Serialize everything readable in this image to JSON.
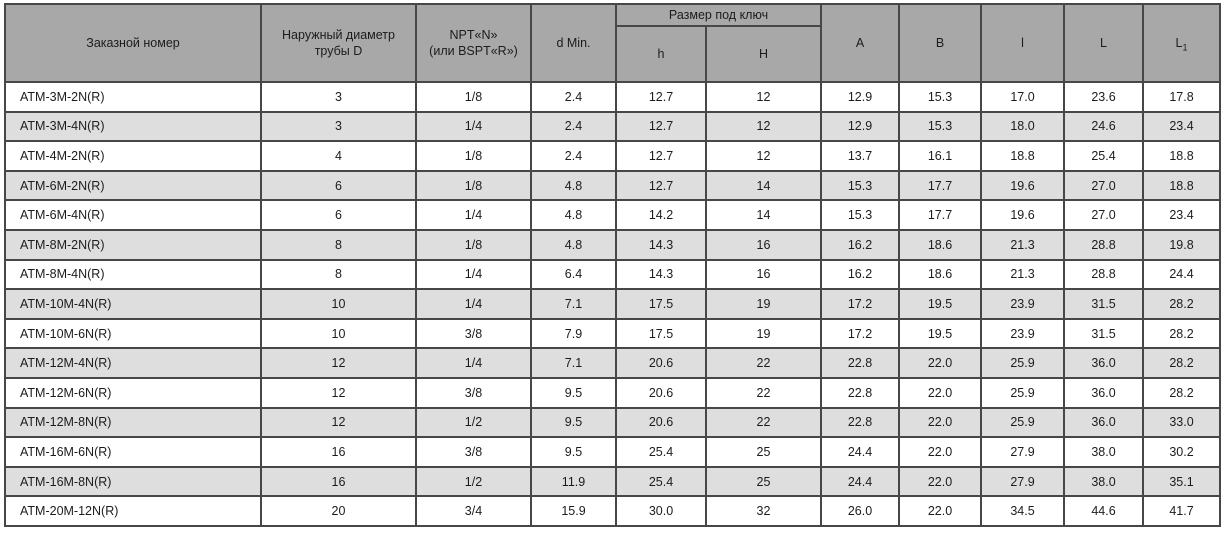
{
  "colors": {
    "page_bg": "#ffffff",
    "header_bg": "#a8a8a8",
    "row_bg": "#ffffff",
    "stripe_bg": "#dedede",
    "border": "#474747",
    "text": "#1c1c1c"
  },
  "table": {
    "header": {
      "order_number": "Заказной номер",
      "tube_diameter": "Наружный диаметр\nтрубы D",
      "npt": "NPT«N»\n(или BSPT«R»)",
      "d_min": "d Min.",
      "wrench_group": "Размер под ключ",
      "wrench_h": "h",
      "wrench_H": "H",
      "a": "A",
      "b": "B",
      "l_small": "l",
      "l_big": "L",
      "l1_base": "L",
      "l1_sub": "1"
    },
    "column_keys": [
      "order-number",
      "tube-diameter-d",
      "npt-size",
      "d-min",
      "wrench-h",
      "wrench-H",
      "A",
      "B",
      "l",
      "L",
      "L1"
    ],
    "rows": [
      [
        "ATM-3M-2N(R)",
        "3",
        "1/8",
        "2.4",
        "12.7",
        "12",
        "12.9",
        "15.3",
        "17.0",
        "23.6",
        "17.8"
      ],
      [
        "ATM-3M-4N(R)",
        "3",
        "1/4",
        "2.4",
        "12.7",
        "12",
        "12.9",
        "15.3",
        "18.0",
        "24.6",
        "23.4"
      ],
      [
        "ATM-4M-2N(R)",
        "4",
        "1/8",
        "2.4",
        "12.7",
        "12",
        "13.7",
        "16.1",
        "18.8",
        "25.4",
        "18.8"
      ],
      [
        "ATM-6M-2N(R)",
        "6",
        "1/8",
        "4.8",
        "12.7",
        "14",
        "15.3",
        "17.7",
        "19.6",
        "27.0",
        "18.8"
      ],
      [
        "ATM-6M-4N(R)",
        "6",
        "1/4",
        "4.8",
        "14.2",
        "14",
        "15.3",
        "17.7",
        "19.6",
        "27.0",
        "23.4"
      ],
      [
        "ATM-8M-2N(R)",
        "8",
        "1/8",
        "4.8",
        "14.3",
        "16",
        "16.2",
        "18.6",
        "21.3",
        "28.8",
        "19.8"
      ],
      [
        "ATM-8M-4N(R)",
        "8",
        "1/4",
        "6.4",
        "14.3",
        "16",
        "16.2",
        "18.6",
        "21.3",
        "28.8",
        "24.4"
      ],
      [
        "ATM-10M-4N(R)",
        "10",
        "1/4",
        "7.1",
        "17.5",
        "19",
        "17.2",
        "19.5",
        "23.9",
        "31.5",
        "28.2"
      ],
      [
        "ATM-10M-6N(R)",
        "10",
        "3/8",
        "7.9",
        "17.5",
        "19",
        "17.2",
        "19.5",
        "23.9",
        "31.5",
        "28.2"
      ],
      [
        "ATM-12M-4N(R)",
        "12",
        "1/4",
        "7.1",
        "20.6",
        "22",
        "22.8",
        "22.0",
        "25.9",
        "36.0",
        "28.2"
      ],
      [
        "ATM-12M-6N(R)",
        "12",
        "3/8",
        "9.5",
        "20.6",
        "22",
        "22.8",
        "22.0",
        "25.9",
        "36.0",
        "28.2"
      ],
      [
        "ATM-12M-8N(R)",
        "12",
        "1/2",
        "9.5",
        "20.6",
        "22",
        "22.8",
        "22.0",
        "25.9",
        "36.0",
        "33.0"
      ],
      [
        "ATM-16M-6N(R)",
        "16",
        "3/8",
        "9.5",
        "25.4",
        "25",
        "24.4",
        "22.0",
        "27.9",
        "38.0",
        "30.2"
      ],
      [
        "ATM-16M-8N(R)",
        "16",
        "1/2",
        "11.9",
        "25.4",
        "25",
        "24.4",
        "22.0",
        "27.9",
        "38.0",
        "35.1"
      ],
      [
        "ATM-20M-12N(R)",
        "20",
        "3/4",
        "15.9",
        "30.0",
        "32",
        "26.0",
        "22.0",
        "34.5",
        "44.6",
        "41.7"
      ]
    ]
  }
}
